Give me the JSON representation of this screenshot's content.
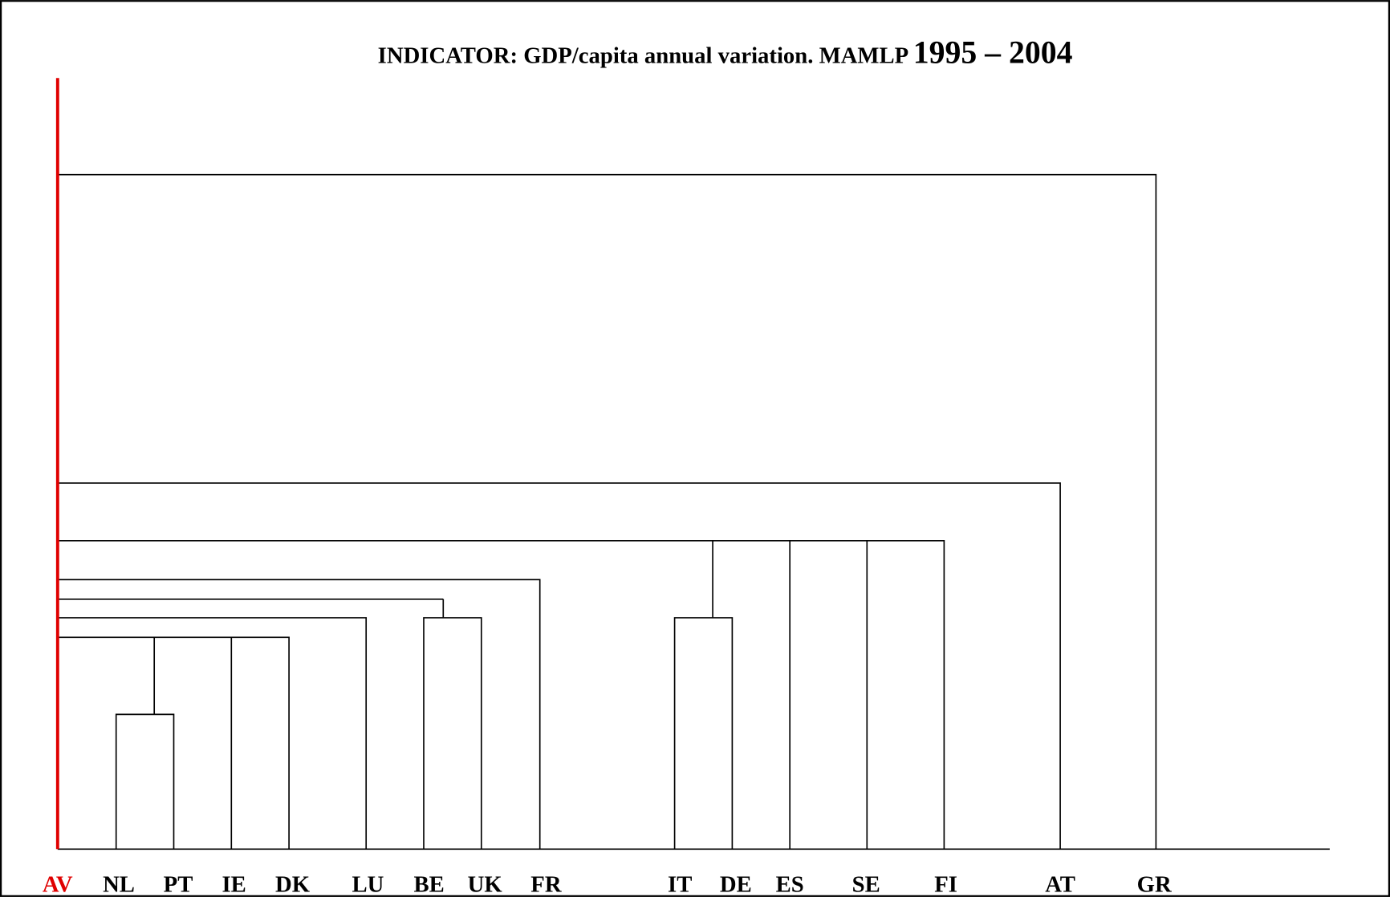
{
  "title": {
    "text": "INDICATOR: GDP/capita annual variation. MAMLP",
    "years": "1995 – 2004"
  },
  "leaves": [
    "AV",
    "NL",
    "PT",
    "IE",
    "DK",
    "LU",
    "BE",
    "UK",
    "FR",
    "IT",
    "DE",
    "ES",
    "SE",
    "FI",
    "AT",
    "GR"
  ]
}
